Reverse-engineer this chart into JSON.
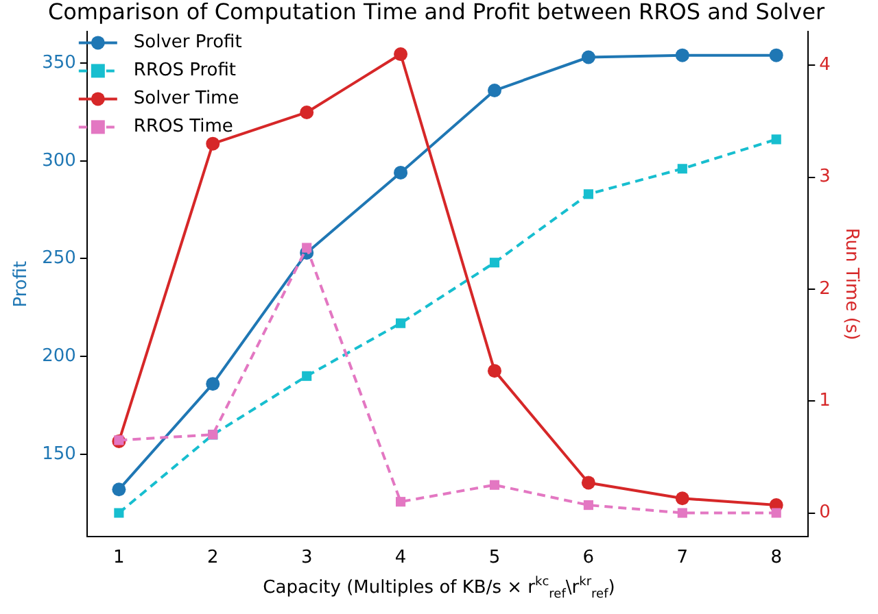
{
  "chart_data": {
    "type": "line",
    "title": "Comparison of Computation Time and Profit between RROS and Solver",
    "xlabel": "Capacity (Multiples of KB/s × r$^{kc}$$_{ref}$\\r$^{kr}$$_{ref}$)",
    "ylabel": "Profit",
    "y2label": "Run Time (s)",
    "x": [
      1,
      2,
      3,
      4,
      5,
      6,
      7,
      8
    ],
    "series": [
      {
        "name": "Solver Profit",
        "color": "#1f77b4",
        "values": [
          132,
          186,
          253,
          294,
          336,
          353,
          354,
          354
        ],
        "marker": "circle",
        "line_style": "solid"
      },
      {
        "name": "RROS Profit",
        "color": "#17becf",
        "values": [
          120,
          160,
          190,
          217,
          248,
          283,
          296,
          311
        ],
        "marker": "square",
        "line_style": "dashed"
      },
      {
        "name": "Solver Time",
        "color": "#d62728",
        "values": [
          0.64,
          3.3,
          3.58,
          4.1,
          1.27,
          0.27,
          0.13,
          0.07
        ],
        "marker": "circle",
        "line_style": "solid",
        "axis": "y2"
      },
      {
        "name": "RROS Time",
        "color": "#e377c2",
        "values": [
          0.65,
          0.7,
          2.37,
          0.1,
          0.25,
          0.07,
          0,
          0
        ],
        "marker": "square",
        "line_style": "dashed",
        "axis": "y2"
      }
    ],
    "xlim": [
      0.66,
      8.34
    ],
    "xticks": [
      1,
      2,
      3,
      4,
      5,
      6,
      7,
      8
    ],
    "ylim": [
      108,
      366
    ],
    "yticks": [
      150,
      200,
      250,
      300,
      350
    ],
    "y2lim": [
      -0.21,
      4.3
    ],
    "y2ticks": [
      0,
      1,
      2,
      3,
      4
    ],
    "grid": false,
    "legend": "top left"
  }
}
